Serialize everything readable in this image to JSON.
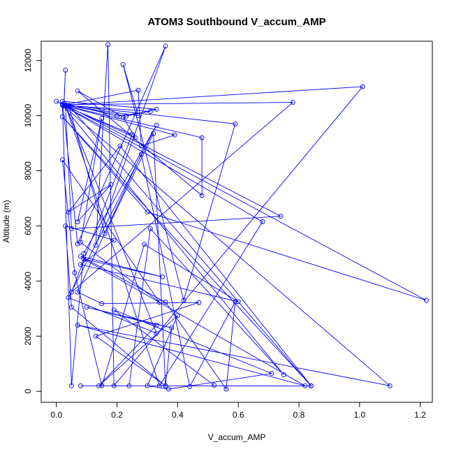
{
  "chart_data": {
    "type": "line",
    "title": "ATOM3 Southbound V_accum_AMP",
    "xlabel": "V_accum_AMP",
    "ylabel": "Altitude (m)",
    "xlim": [
      -0.05,
      1.24
    ],
    "ylim": [
      -400,
      12700
    ],
    "x_ticks": [
      0.0,
      0.2,
      0.4,
      0.6,
      0.8,
      1.0,
      1.2
    ],
    "x_tick_labels": [
      "0.0",
      "0.2",
      "0.4",
      "0.6",
      "0.8",
      "1.0",
      "1.2"
    ],
    "y_ticks": [
      0,
      2000,
      4000,
      6000,
      8000,
      10000,
      12000
    ],
    "y_tick_labels": [
      "0",
      "2000",
      "4000",
      "6000",
      "8000",
      "10000",
      "12000"
    ],
    "grid": false,
    "legend": "none",
    "marker": "open-circle",
    "series": [
      {
        "color": "#0000ff",
        "points": [
          [
            0.0,
            10520
          ],
          [
            0.02,
            10400
          ],
          [
            0.025,
            10350
          ],
          [
            0.03,
            11650
          ],
          [
            0.025,
            10450
          ],
          [
            0.2,
            9980
          ],
          [
            0.31,
            10150
          ],
          [
            0.02,
            10380
          ],
          [
            0.39,
            9300
          ],
          [
            0.28,
            8900
          ],
          [
            0.27,
            10920
          ],
          [
            0.02,
            10380
          ],
          [
            0.48,
            9200
          ],
          [
            0.48,
            7100
          ],
          [
            0.07,
            10900
          ],
          [
            0.22,
            9950
          ],
          [
            0.26,
            9200
          ],
          [
            0.02,
            10400
          ],
          [
            0.59,
            9700
          ],
          [
            0.42,
            3300
          ],
          [
            0.22,
            11850
          ],
          [
            0.27,
            10000
          ],
          [
            0.02,
            10380
          ],
          [
            1.01,
            11050
          ],
          [
            0.19,
            200
          ],
          [
            0.17,
            12580
          ],
          [
            0.13,
            5300
          ],
          [
            0.36,
            12520
          ],
          [
            0.07,
            5350
          ],
          [
            0.02,
            10520
          ],
          [
            0.33,
            10230
          ],
          [
            0.23,
            9980
          ],
          [
            0.02,
            10400
          ],
          [
            0.78,
            10480
          ],
          [
            0.05,
            3600
          ],
          [
            0.25,
            9320
          ],
          [
            0.02,
            10380
          ],
          [
            0.68,
            6150
          ],
          [
            0.34,
            200
          ],
          [
            0.03,
            10380
          ],
          [
            0.74,
            6350
          ],
          [
            0.05,
            5900
          ],
          [
            0.03,
            10380
          ],
          [
            0.33,
            2100
          ],
          [
            0.04,
            3400
          ],
          [
            0.33,
            9650
          ],
          [
            0.09,
            5000
          ],
          [
            0.05,
            200
          ],
          [
            0.02,
            10380
          ],
          [
            1.22,
            3300
          ],
          [
            0.3,
            6500
          ],
          [
            0.02,
            9960
          ],
          [
            0.84,
            200
          ],
          [
            0.21,
            8900
          ],
          [
            0.04,
            6500
          ],
          [
            0.18,
            7500
          ],
          [
            0.07,
            6150
          ],
          [
            0.15,
            9900
          ],
          [
            0.08,
            5400
          ],
          [
            0.34,
            3230
          ],
          [
            0.02,
            8400
          ],
          [
            0.06,
            4300
          ],
          [
            0.15,
            200
          ],
          [
            0.29,
            5330
          ],
          [
            0.6,
            3250
          ],
          [
            0.08,
            4600
          ],
          [
            0.19,
            5480
          ],
          [
            0.03,
            6000
          ],
          [
            0.05,
            3050
          ],
          [
            0.36,
            190
          ],
          [
            0.32,
            9350
          ],
          [
            0.16,
            5720
          ],
          [
            0.04,
            10380
          ],
          [
            0.84,
            190
          ],
          [
            0.08,
            200
          ],
          [
            0.24,
            200
          ],
          [
            0.31,
            5900
          ],
          [
            0.75,
            600
          ],
          [
            0.02,
            10380
          ],
          [
            1.1,
            200
          ],
          [
            0.07,
            2400
          ],
          [
            0.82,
            200
          ],
          [
            0.09,
            4800
          ],
          [
            0.35,
            4150
          ],
          [
            0.08,
            4900
          ],
          [
            0.36,
            3230
          ],
          [
            0.56,
            80
          ],
          [
            0.59,
            3250
          ],
          [
            0.44,
            170
          ],
          [
            0.28,
            8600
          ],
          [
            0.07,
            3600
          ],
          [
            0.15,
            3180
          ],
          [
            0.47,
            3220
          ],
          [
            0.13,
            2000
          ],
          [
            0.36,
            200
          ],
          [
            0.38,
            2300
          ],
          [
            0.1,
            3050
          ],
          [
            0.33,
            2400
          ],
          [
            0.14,
            200
          ],
          [
            0.4,
            2750
          ],
          [
            0.3,
            200
          ],
          [
            0.37,
            80
          ],
          [
            0.71,
            650
          ],
          [
            0.19,
            2950
          ],
          [
            0.52,
            220
          ]
        ]
      }
    ]
  }
}
